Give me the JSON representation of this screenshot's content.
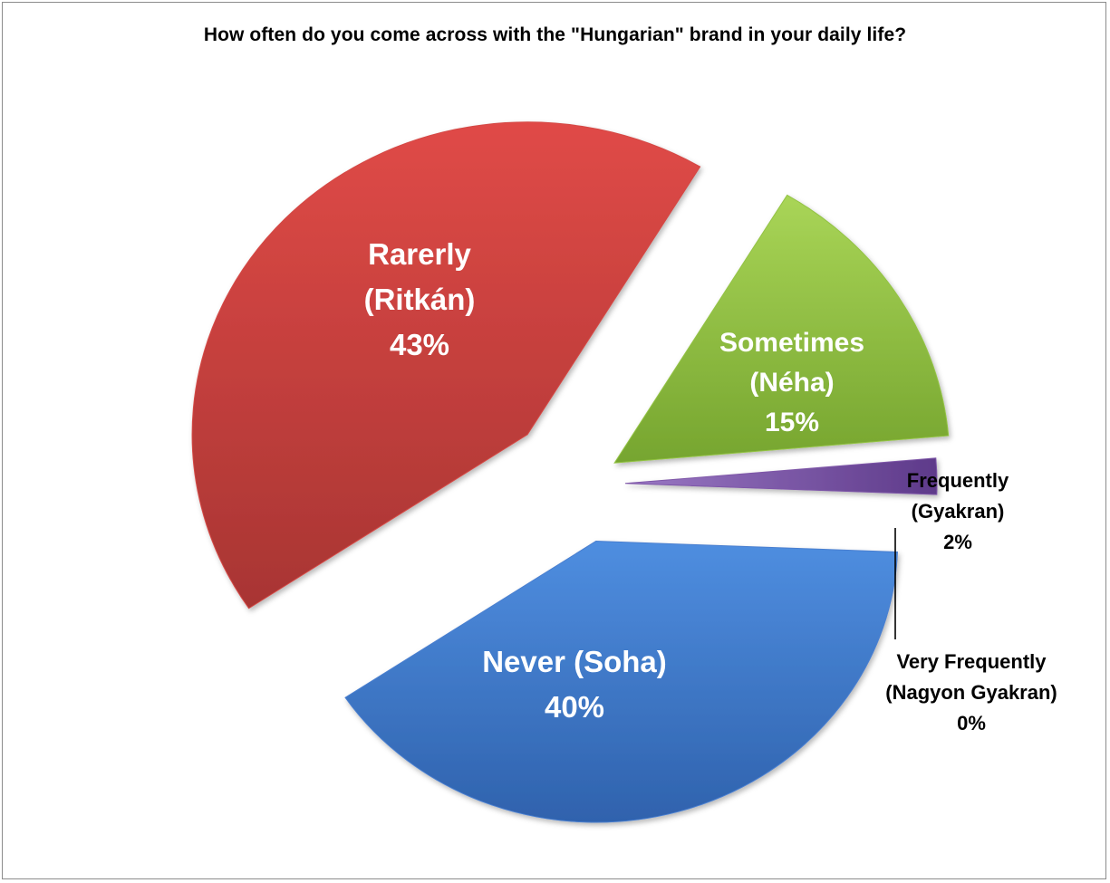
{
  "chart_data": {
    "type": "pie",
    "title": "How often do you come across with the \"Hungarian\" brand in your daily life?",
    "legend": "none",
    "slices": [
      {
        "key": "very_frequently",
        "label_lines": [
          "Very Frequently",
          "(Nagyon Gyakran)"
        ],
        "value_label": "0%",
        "value": 0,
        "color": "#7f7f7f",
        "label_position": "outside"
      },
      {
        "key": "frequently",
        "label_lines": [
          "Frequently",
          "(Gyakran)"
        ],
        "value_label": "2%",
        "value": 2,
        "color": "#7e57a8",
        "label_position": "outside"
      },
      {
        "key": "never",
        "label_lines": [
          "Never (Soha)"
        ],
        "value_label": "40%",
        "value": 40,
        "color": "#4a7fd0",
        "label_position": "inside"
      },
      {
        "key": "rarely",
        "label_lines": [
          "Rarerly",
          "(Ritkán)"
        ],
        "value_label": "43%",
        "value": 43,
        "color": "#d44845",
        "label_position": "inside"
      },
      {
        "key": "sometimes",
        "label_lines": [
          "Sometimes",
          "(Néha)"
        ],
        "value_label": "15%",
        "value": 15,
        "color": "#93c344",
        "label_position": "inside"
      }
    ]
  }
}
